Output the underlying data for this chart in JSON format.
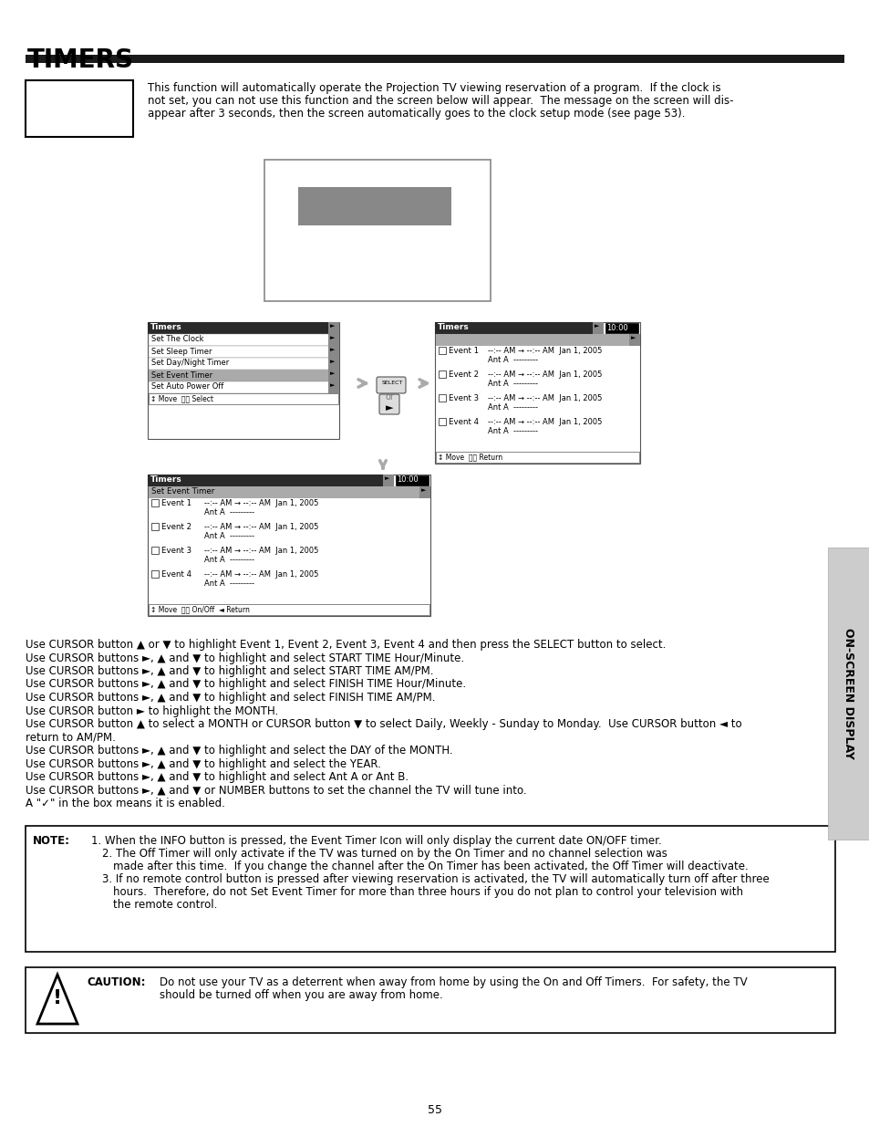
{
  "title": "TIMERS",
  "bg_color": "#ffffff",
  "text_color": "#000000",
  "page_number": "55",
  "intro_text_line1": "This function will automatically operate the Projection TV viewing reservation of a program.  If the clock is",
  "intro_text_line2": "not set, you can not use this function and the screen below will appear.  The message on the screen will dis-",
  "intro_text_line3": "appear after 3 seconds, then the screen automatically goes to the clock setup mode (see page 53).",
  "cursor_lines": [
    "Use CURSOR button ▲ or ▼ to highlight Event 1, Event 2, Event 3, Event 4 and then press the SELECT button to select.",
    "Use CURSOR buttons ►, ▲ and ▼ to highlight and select START TIME Hour/Minute.",
    "Use CURSOR buttons ►, ▲ and ▼ to highlight and select START TIME AM/PM.",
    "Use CURSOR buttons ►, ▲ and ▼ to highlight and select FINISH TIME Hour/Minute.",
    "Use CURSOR buttons ►, ▲ and ▼ to highlight and select FINISH TIME AM/PM.",
    "Use CURSOR button ► to highlight the MONTH.",
    "Use CURSOR button ▲ to select a MONTH or CURSOR button ▼ to select Daily, Weekly - Sunday to Monday.  Use CURSOR button ◄ to",
    "return to AM/PM.",
    "Use CURSOR buttons ►, ▲ and ▼ to highlight and select the DAY of the MONTH.",
    "Use CURSOR buttons ►, ▲ and ▼ to highlight and select the YEAR.",
    "Use CURSOR buttons ►, ▲ and ▼ to highlight and select Ant A or Ant B.",
    "Use CURSOR buttons ►, ▲ and ▼ or NUMBER buttons to set the channel the TV will tune into.",
    "A \"✓\" in the box means it is enabled."
  ],
  "sidebar_text": "ON-SCREEN DISPLAY",
  "menu_items_left": [
    "Set The Clock",
    "Set Sleep Timer",
    "Set Day/Night Timer",
    "Set Event Timer",
    "Set Auto Power Off"
  ],
  "event_rows": [
    "Event 1",
    "Event 2",
    "Event 3",
    "Event 4"
  ],
  "event_data": "--:-- AM → --:-- AM  Jan 1, 2005",
  "ant_data": "Ant A  ---------"
}
